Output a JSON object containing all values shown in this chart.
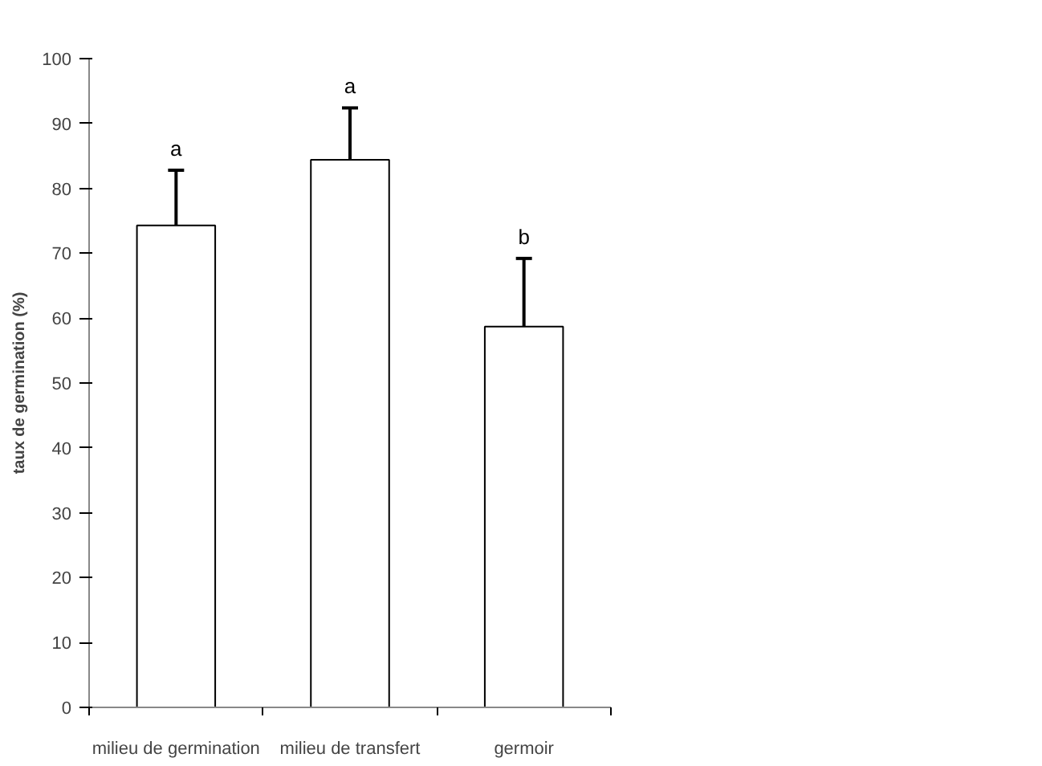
{
  "chart_data": {
    "type": "bar",
    "ylabel": "taux de germination (%)",
    "categories": [
      "milieu de germination",
      "milieu de transfert",
      "germoir"
    ],
    "values": [
      74.3,
      84.4,
      58.7
    ],
    "color": "#ffffff",
    "errors": [
      8.5,
      8,
      10.5
    ],
    "ylim": [
      0,
      100
    ],
    "yticks": [
      0,
      10,
      20,
      30,
      40,
      50,
      60,
      70,
      80,
      90,
      100
    ],
    "grid": false,
    "annotations": [
      "a",
      "a",
      "b"
    ]
  }
}
